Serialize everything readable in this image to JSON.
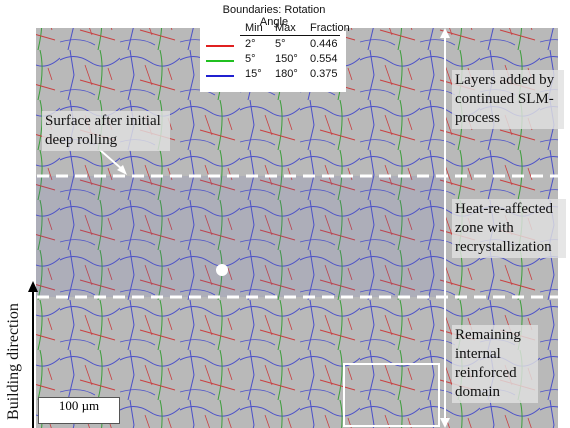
{
  "legend": {
    "title": "Boundaries: Rotation Angle",
    "header": [
      "Min",
      "Max",
      "Fraction"
    ],
    "rows": [
      [
        "2°",
        "5°",
        "0.446"
      ],
      [
        "5°",
        "150°",
        "0.554"
      ],
      [
        "15°",
        "180°",
        "0.375"
      ]
    ]
  },
  "annotations": {
    "top_zone": "Layers added by continued SLM-process",
    "middle_zone": "Heat-re-affected zone with recrystallization",
    "bottom_zone": "Remaining internal reinforced domain",
    "surface": "Surface after initial deep rolling",
    "building_direction": "Building direction",
    "scale_bar": "100 µm"
  }
}
